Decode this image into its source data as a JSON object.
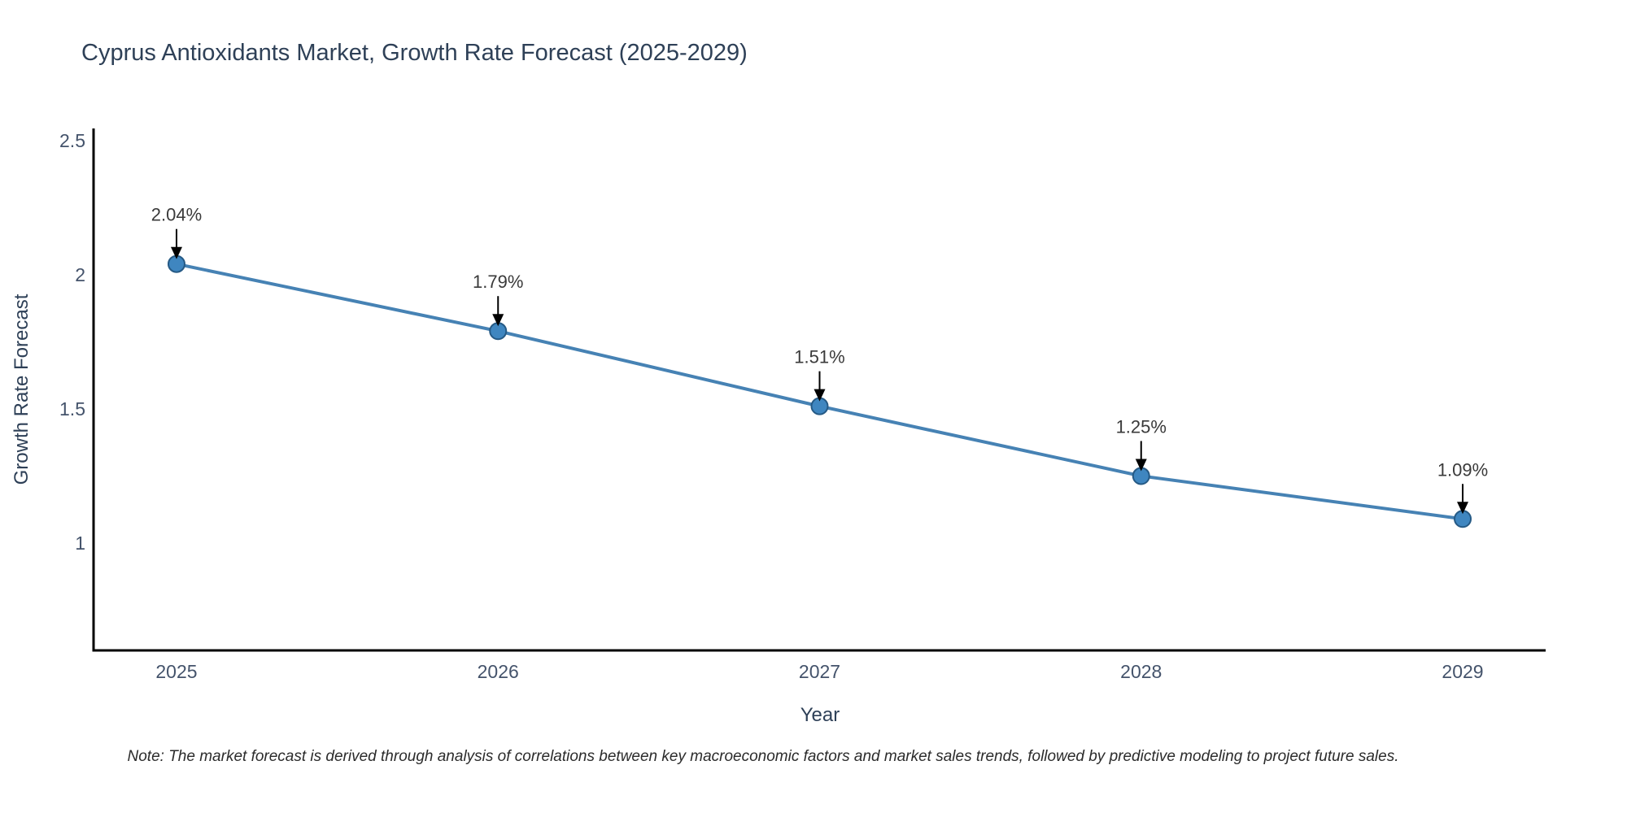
{
  "header": {
    "title": "Cyprus Antioxidants Market, Growth Rate Forecast (2025-2029)"
  },
  "chart_data": {
    "type": "line",
    "title": "Cyprus Antioxidants Market, Growth Rate Forecast (2025-2029)",
    "x": [
      2025,
      2026,
      2027,
      2028,
      2029
    ],
    "categories": [
      "2025",
      "2026",
      "2027",
      "2028",
      "2029"
    ],
    "values": [
      2.04,
      1.79,
      1.51,
      1.25,
      1.09
    ],
    "point_labels": [
      "2.04%",
      "1.79%",
      "1.51%",
      "1.25%",
      "1.09%"
    ],
    "xlabel": "Year",
    "ylabel": "Growth Rate Forecast",
    "xlim": [
      2024.742,
      2029.258
    ],
    "ylim": [
      0.6,
      2.545
    ],
    "yticks": [
      1,
      1.5,
      2,
      2.5
    ],
    "ytick_labels": [
      "1",
      "1.5",
      "2",
      "2.5"
    ],
    "grid": false,
    "legend_position": "none",
    "annotation_style": "value-label-with-down-arrow"
  },
  "footer": {
    "note": "Note: The market forecast is derived through analysis of correlations between key macroeconomic factors and market sales trends, followed by predictive modeling to project future sales."
  },
  "style": {
    "background": "#ffffff",
    "line_color": "#4682b4",
    "marker_fill": "#3f86c0",
    "marker_edge": "#265a85",
    "axis_color": "#000000",
    "title_color": "#2e4057",
    "tick_color": "#44536b",
    "annotation_text_color": "#3a3a3a",
    "arrow_color": "#000000"
  }
}
